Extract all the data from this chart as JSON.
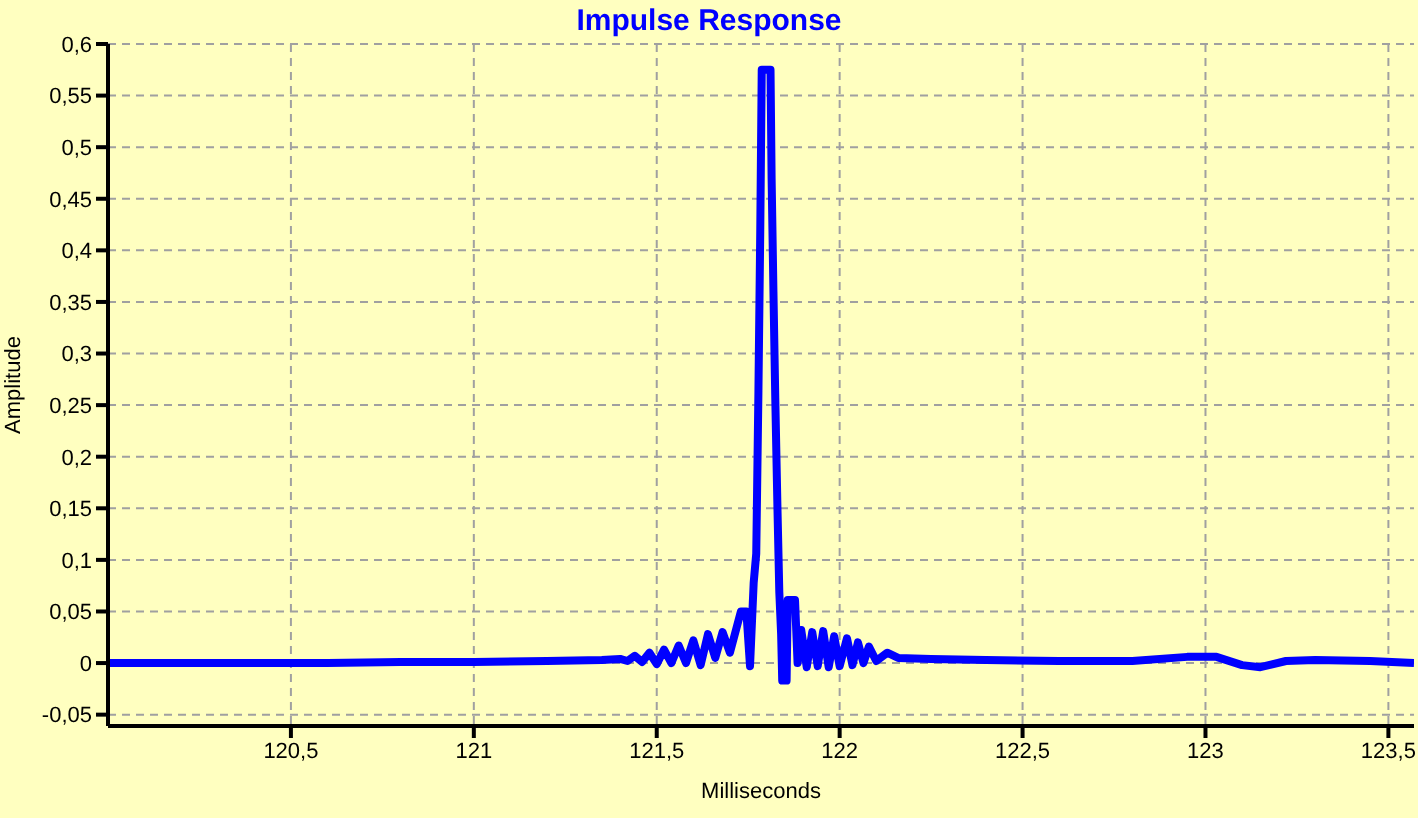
{
  "chart_data": {
    "type": "line",
    "title": "Impulse Response",
    "xlabel": "Milliseconds",
    "ylabel": "Amplitude",
    "x": [
      120.0,
      120.3,
      120.6,
      120.8,
      121.0,
      121.2,
      121.35,
      121.4,
      121.42,
      121.44,
      121.46,
      121.48,
      121.5,
      121.52,
      121.54,
      121.56,
      121.58,
      121.6,
      121.62,
      121.64,
      121.66,
      121.68,
      121.7,
      121.73,
      121.745,
      121.755,
      121.765,
      121.772,
      121.778,
      121.783,
      121.787,
      121.811,
      121.814,
      121.819,
      121.824,
      121.83,
      121.835,
      121.84,
      121.843,
      121.855,
      121.858,
      121.878,
      121.885,
      121.895,
      121.91,
      121.925,
      121.94,
      121.955,
      121.97,
      121.985,
      122.0,
      122.02,
      122.035,
      122.05,
      122.065,
      122.08,
      122.1,
      122.13,
      122.16,
      122.25,
      122.4,
      122.6,
      122.8,
      122.95,
      123.03,
      123.1,
      123.15,
      123.22,
      123.3,
      123.45,
      123.57
    ],
    "series": [
      {
        "color": "#0000ff",
        "values": [
          0,
          0,
          0,
          0.001,
          0.001,
          0.002,
          0.003,
          0.004,
          0.002,
          0.007,
          0.001,
          0.01,
          -0.001,
          0.013,
          0,
          0.017,
          0,
          0.022,
          -0.002,
          0.028,
          0.005,
          0.03,
          0.01,
          0.05,
          0.05,
          -0.003,
          0.078,
          0.106,
          0.264,
          0.42,
          0.575,
          0.575,
          0.47,
          0.36,
          0.257,
          0.15,
          0.069,
          0.028,
          -0.017,
          -0.017,
          0.061,
          0.061,
          0,
          0.032,
          -0.004,
          0.03,
          -0.003,
          0.031,
          -0.004,
          0.026,
          -0.003,
          0.024,
          -0.002,
          0.02,
          0,
          0.016,
          0.002,
          0.01,
          0.005,
          0.004,
          0.003,
          0.002,
          0.002,
          0.006,
          0.006,
          -0.002,
          -0.004,
          0.002,
          0.003,
          0.002,
          0
        ]
      }
    ],
    "xlim": [
      120.0,
      123.57
    ],
    "ylim": [
      -0.061,
      0.6
    ],
    "xticks": [
      {
        "value": 120.5,
        "label": "120,5"
      },
      121,
      {
        "value": 121.5,
        "label": "121,5"
      },
      122,
      {
        "value": 122.5,
        "label": "122,5"
      },
      123,
      {
        "value": 123.5,
        "label": "123,5"
      }
    ],
    "yticks": [
      {
        "value": -0.05,
        "label": "-0,05"
      },
      0,
      {
        "value": 0.05,
        "label": "0,05"
      },
      {
        "value": 0.1,
        "label": "0,1"
      },
      {
        "value": 0.15,
        "label": "0,15"
      },
      {
        "value": 0.2,
        "label": "0,2"
      },
      {
        "value": 0.25,
        "label": "0,25"
      },
      {
        "value": 0.3,
        "label": "0,3"
      },
      {
        "value": 0.35,
        "label": "0,35"
      },
      {
        "value": 0.4,
        "label": "0,4"
      },
      {
        "value": 0.45,
        "label": "0,45"
      },
      {
        "value": 0.5,
        "label": "0,5"
      },
      {
        "value": 0.55,
        "label": "0,55"
      },
      {
        "value": 0.6,
        "label": "0,6"
      }
    ],
    "grid": true,
    "marker": "none",
    "line_style": "solid"
  }
}
